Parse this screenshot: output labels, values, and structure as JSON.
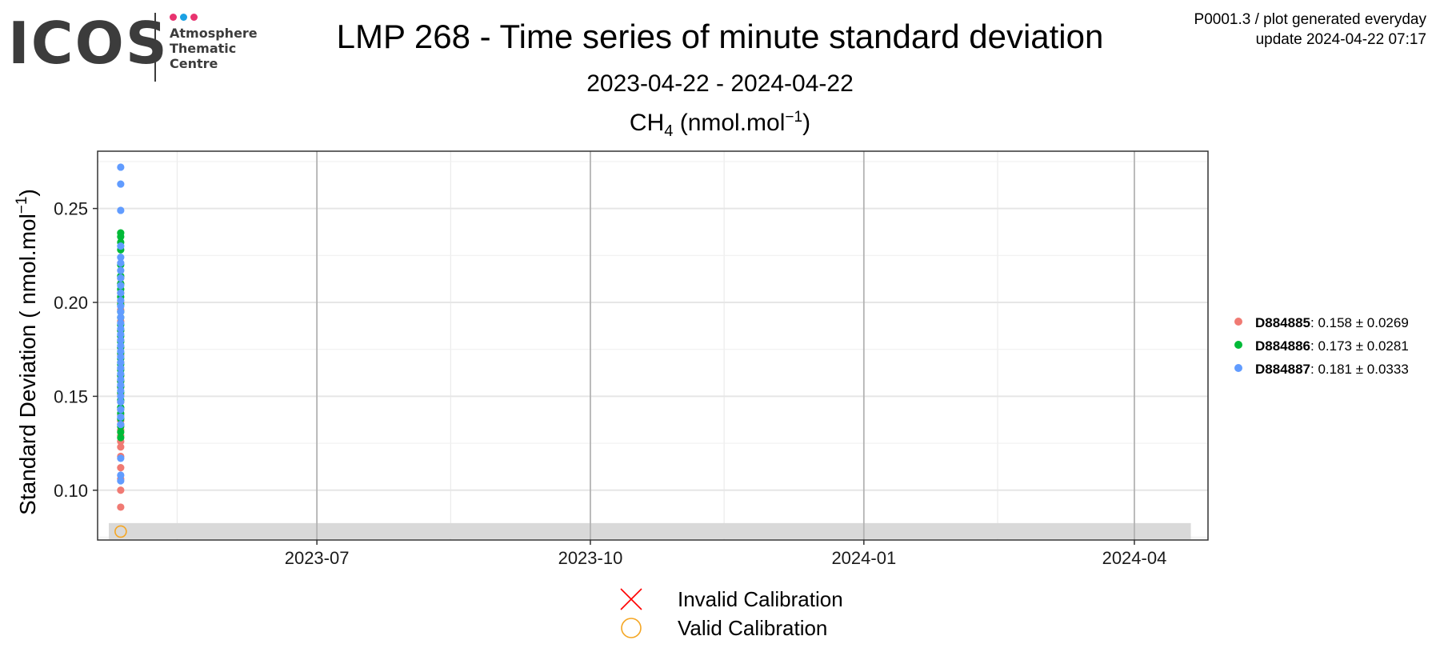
{
  "logo": {
    "wordmark": "ICOS",
    "line1": "Atmosphere",
    "line2": "Thematic",
    "line3": "Centre",
    "dot_colors": [
      "#e8336f",
      "#1aa1e3",
      "#e8336f"
    ],
    "text_color": "#3c3c3c"
  },
  "header": {
    "title": "LMP 268 - Time series of minute standard deviation",
    "date_range": "2023-04-22 - 2024-04-22",
    "species": "CH",
    "species_subscript": "4",
    "species_unit_open": " (nmol.mol",
    "species_unit_sup": "−1",
    "species_unit_close": ")",
    "product_code": "P0001.3 / plot generated everyday",
    "update": "update  2024-04-22 07:17"
  },
  "chart_data": {
    "type": "scatter",
    "ylabel": "Standard Deviation ( nmol.mol",
    "ylabel_sup": "−1",
    "ylabel_close": ")",
    "x_ticks": [
      "2023-07",
      "2023-10",
      "2024-01",
      "2024-04"
    ],
    "x_range": [
      "2023-04-22",
      "2024-04-22"
    ],
    "y_ticks": [
      0.1,
      0.15,
      0.2,
      0.25
    ],
    "y_tick_labels": [
      "0.10",
      "0.15",
      "0.20",
      "0.25"
    ],
    "ylim": [
      0.0735,
      0.2805
    ],
    "grid": true,
    "legend_position": "right",
    "band": {
      "from": "2023-04-22",
      "to": "2024-04-20",
      "ymin": 0.074,
      "ymax": 0.0825,
      "color": "#d9d9d9"
    },
    "series": [
      {
        "name": "D884885",
        "stats": ": 0.158 ± 0.0269",
        "color": "#f07a73",
        "x": "2023-04-26",
        "values": [
          0.091,
          0.1,
          0.106,
          0.112,
          0.118,
          0.123,
          0.126,
          0.129,
          0.132,
          0.135,
          0.137,
          0.14,
          0.143,
          0.147,
          0.151,
          0.155,
          0.158,
          0.161,
          0.165,
          0.168,
          0.172,
          0.176,
          0.18,
          0.185,
          0.19,
          0.196,
          0.2,
          0.205,
          0.21,
          0.213
        ]
      },
      {
        "name": "D884886",
        "stats": ": 0.173 ± 0.0281",
        "color": "#00ba38",
        "x": "2023-04-26",
        "values": [
          0.128,
          0.131,
          0.134,
          0.138,
          0.141,
          0.144,
          0.148,
          0.152,
          0.155,
          0.158,
          0.161,
          0.164,
          0.167,
          0.17,
          0.173,
          0.176,
          0.179,
          0.182,
          0.185,
          0.188,
          0.192,
          0.195,
          0.199,
          0.203,
          0.207,
          0.21,
          0.214,
          0.22,
          0.228,
          0.232,
          0.235,
          0.237
        ]
      },
      {
        "name": "D884887",
        "stats": ": 0.181 ± 0.0333",
        "color": "#619cff",
        "x": "2023-04-26",
        "values": [
          0.105,
          0.108,
          0.117,
          0.135,
          0.139,
          0.143,
          0.147,
          0.15,
          0.153,
          0.156,
          0.159,
          0.162,
          0.165,
          0.168,
          0.171,
          0.174,
          0.177,
          0.18,
          0.183,
          0.186,
          0.189,
          0.192,
          0.195,
          0.198,
          0.201,
          0.205,
          0.209,
          0.213,
          0.217,
          0.221,
          0.224,
          0.23,
          0.249,
          0.263,
          0.272
        ]
      }
    ],
    "calibration": {
      "x": "2023-04-26",
      "y": 0.078,
      "color": "#f5a623",
      "invalid_label": "Invalid Calibration",
      "invalid_color": "#ff0000",
      "valid_label": "Valid Calibration",
      "valid_color": "#f5a623"
    }
  }
}
